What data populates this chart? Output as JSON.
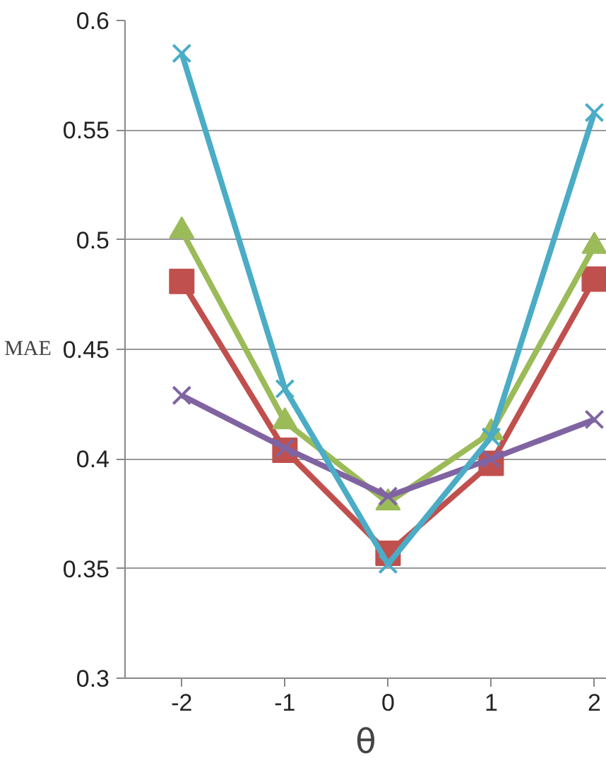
{
  "chart_data": {
    "type": "line",
    "xlabel": "θ",
    "ylabel": "MAE",
    "categories": [
      "-2",
      "-1",
      "0",
      "1",
      "2"
    ],
    "ylim": [
      0.3,
      0.6
    ],
    "yticks": [
      {
        "value": 0.3,
        "label": "0.3"
      },
      {
        "value": 0.35,
        "label": "0.35"
      },
      {
        "value": 0.4,
        "label": "0.4"
      },
      {
        "value": 0.45,
        "label": "0.45"
      },
      {
        "value": 0.5,
        "label": "0.5"
      },
      {
        "value": 0.55,
        "label": "0.55"
      },
      {
        "value": 0.6,
        "label": "0.6"
      }
    ],
    "grid": "y",
    "series": [
      {
        "color": "#c0504d",
        "marker": "square",
        "values": [
          0.481,
          0.404,
          0.357,
          0.398,
          0.482
        ]
      },
      {
        "color": "#9bbb59",
        "marker": "triangle",
        "values": [
          0.504,
          0.417,
          0.38,
          0.412,
          0.497
        ]
      },
      {
        "color": "#8064a2",
        "marker": "cross",
        "values": [
          0.429,
          0.405,
          0.383,
          0.4,
          0.418
        ]
      },
      {
        "color": "#4bacc6",
        "marker": "cross",
        "values": [
          0.585,
          0.432,
          0.352,
          0.41,
          0.558
        ]
      }
    ]
  }
}
